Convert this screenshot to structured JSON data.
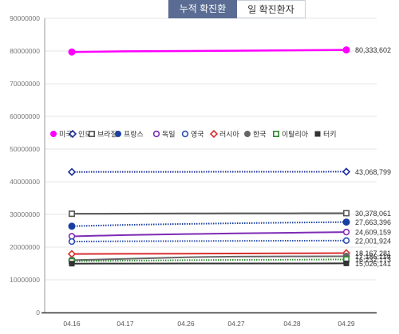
{
  "tabs": [
    {
      "label": "누적 확진환자",
      "active": true
    },
    {
      "label": "일 확진환자",
      "active": false
    }
  ],
  "chart_data": {
    "type": "line",
    "categories": [
      "04.16",
      "04.17",
      "04.26",
      "04.27",
      "04.28",
      "04.29"
    ],
    "ylim": [
      0,
      90000000
    ],
    "yticks": [
      "0",
      "10000000",
      "20000000",
      "30000000",
      "40000000",
      "50000000",
      "60000000",
      "70000000",
      "80000000",
      "90000000"
    ],
    "grid": true,
    "legend_position": "top-left",
    "series": [
      {
        "name": "미국",
        "color": "#ff00ff",
        "marker": "circle-filled",
        "line": "solid",
        "width": 2.5,
        "values": [
          79700000,
          79900000,
          80000000,
          80100000,
          80200000,
          80333602
        ],
        "end_label": "80,333,602"
      },
      {
        "name": "인도",
        "color": "#1a2d9c",
        "marker": "diamond-open",
        "line": "dotted",
        "width": 2,
        "values": [
          43000000,
          43010000,
          43030000,
          43040000,
          43055000,
          43068799
        ],
        "end_label": "43,068,799"
      },
      {
        "name": "브라질",
        "color": "#555555",
        "marker": "square-open",
        "line": "solid",
        "width": 2,
        "values": [
          30200000,
          30250000,
          30300000,
          30330000,
          30350000,
          30378061
        ],
        "end_label": "30,378,061"
      },
      {
        "name": "프랑스",
        "color": "#1a3fa0",
        "marker": "circle-filled",
        "line": "dotted",
        "width": 2,
        "values": [
          26400000,
          26800000,
          27100000,
          27300000,
          27500000,
          27663396
        ],
        "end_label": "27,663,396"
      },
      {
        "name": "독일",
        "color": "#7d2bb5",
        "marker": "circle-open",
        "line": "solid",
        "width": 2,
        "values": [
          23300000,
          23700000,
          24000000,
          24200000,
          24400000,
          24609159
        ],
        "end_label": "24,609,159"
      },
      {
        "name": "영국",
        "color": "#2a4db0",
        "marker": "circle-open",
        "line": "dotted",
        "width": 2,
        "values": [
          21700000,
          21800000,
          21850000,
          21900000,
          21950000,
          22001924
        ],
        "end_label": "22,001,924"
      },
      {
        "name": "러시아",
        "color": "#d93030",
        "marker": "diamond-open",
        "line": "solid",
        "width": 2,
        "values": [
          17900000,
          17950000,
          18000000,
          18050000,
          18100000,
          18167281
        ],
        "end_label": "18,167,281"
      },
      {
        "name": "한국",
        "color": "#666666",
        "marker": "circle-filled",
        "line": "solid",
        "width": 2,
        "values": [
          16000000,
          16400000,
          16900000,
          17100000,
          17150000,
          17186119
        ],
        "end_label": "17,186,119"
      },
      {
        "name": "이탈리아",
        "color": "#2e8b2e",
        "marker": "square-open",
        "line": "dotted",
        "width": 2,
        "values": [
          15700000,
          15850000,
          16000000,
          16100000,
          16150000,
          16232173
        ],
        "end_label": "16,232,173"
      },
      {
        "name": "터키",
        "color": "#333333",
        "marker": "square-filled",
        "line": "solid",
        "width": 2,
        "values": [
          14950000,
          14970000,
          14990000,
          15000000,
          15010000,
          15026141
        ],
        "end_label": "15,026,141"
      }
    ]
  }
}
